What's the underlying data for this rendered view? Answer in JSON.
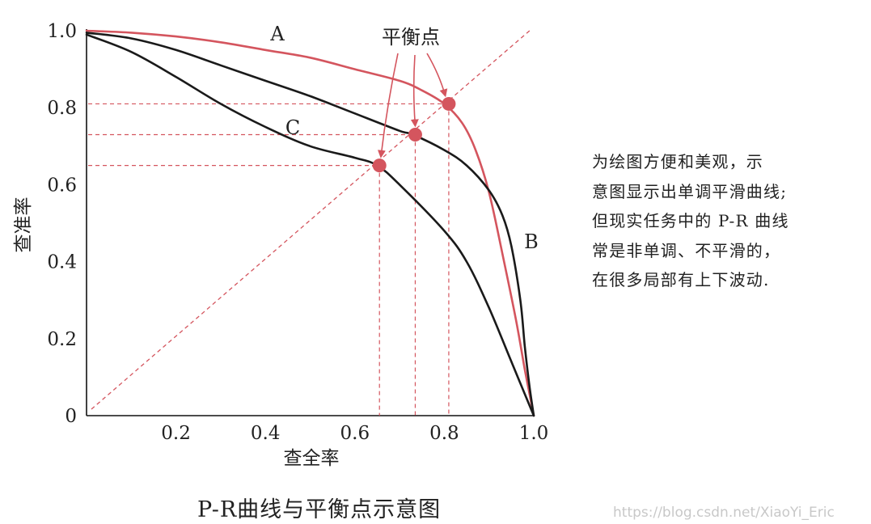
{
  "chart_data": {
    "type": "line",
    "xlabel": "查全率",
    "ylabel": "查准率",
    "xlim": [
      0,
      1.0
    ],
    "ylim": [
      0,
      1.0
    ],
    "x_ticks": [
      "0.2",
      "0.4",
      "0.6",
      "0.8",
      "1.0"
    ],
    "x_tick_values": [
      0.2,
      0.4,
      0.6,
      0.8,
      1.0
    ],
    "y_ticks": [
      "0",
      "0.2",
      "0.4",
      "0.6",
      "0.8",
      "1.0"
    ],
    "y_tick_values": [
      0,
      0.2,
      0.4,
      0.6,
      0.8,
      1.0
    ],
    "grid": false,
    "series": [
      {
        "name": "A",
        "color": "#d4555e",
        "x": [
          0.0,
          0.1,
          0.2,
          0.3,
          0.4,
          0.5,
          0.6,
          0.7,
          0.75,
          0.8,
          0.84,
          0.87,
          0.9,
          0.93,
          0.96,
          0.98,
          1.0
        ],
        "y": [
          1.0,
          0.995,
          0.985,
          0.97,
          0.95,
          0.93,
          0.9,
          0.87,
          0.845,
          0.81,
          0.76,
          0.69,
          0.58,
          0.42,
          0.25,
          0.12,
          0.0
        ]
      },
      {
        "name": "B",
        "color": "#1a1a1a",
        "x": [
          0.0,
          0.1,
          0.2,
          0.3,
          0.4,
          0.5,
          0.6,
          0.7,
          0.73,
          0.8,
          0.85,
          0.9,
          0.93,
          0.95,
          0.97,
          0.98,
          0.99,
          1.0
        ],
        "y": [
          0.995,
          0.98,
          0.95,
          0.91,
          0.87,
          0.83,
          0.785,
          0.74,
          0.73,
          0.69,
          0.65,
          0.585,
          0.52,
          0.44,
          0.3,
          0.18,
          0.08,
          0.0
        ]
      },
      {
        "name": "C",
        "color": "#1a1a1a",
        "x": [
          0.0,
          0.1,
          0.2,
          0.3,
          0.4,
          0.5,
          0.6,
          0.65,
          0.7,
          0.8,
          0.85,
          0.9,
          0.95,
          1.0
        ],
        "y": [
          0.99,
          0.945,
          0.88,
          0.81,
          0.75,
          0.7,
          0.67,
          0.65,
          0.6,
          0.48,
          0.4,
          0.28,
          0.14,
          0.0
        ]
      }
    ],
    "break_even_points": [
      {
        "x": 0.655,
        "y": 0.65
      },
      {
        "x": 0.735,
        "y": 0.73
      },
      {
        "x": 0.81,
        "y": 0.81
      }
    ],
    "annotations": {
      "label_A": "A",
      "label_B": "B",
      "label_C": "C",
      "break_even_label": "平衡点"
    },
    "colors": {
      "curve_A": "#d4555e",
      "curves_BC": "#1a1a1a",
      "dashed": "#d4555e",
      "points": "#d4555e"
    }
  },
  "side_note": [
    "为绘图方便和美观，示",
    "意图显示出单调平滑曲线;",
    "但现实任务中的 P-R 曲线",
    "常是非单调、不平滑的，",
    "在很多局部有上下波动."
  ],
  "caption": "P-R曲线与平衡点示意图",
  "watermark": "https://blog.csdn.net/XiaoYi_Eric"
}
